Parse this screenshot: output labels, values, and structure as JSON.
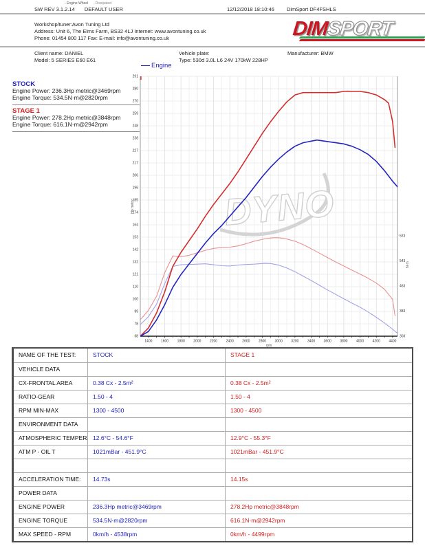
{
  "colors": {
    "stock_blue": "#2222bf",
    "stage1_red": "#d02020",
    "logo_red": "#cc1622",
    "logo_green": "#2e9e50"
  },
  "header": {
    "legend_tiny1": "- Engine Wheel",
    "legend_tiny2": "- Dissipated",
    "sw_rev": "SW REV 3.1.2.14",
    "user": "DEFAULT USER",
    "datetime": "12/12/2018 18:10:46",
    "device": "DimSport DF4FSHLS",
    "workshop_line1": "Workshop/tuner:Avon Tuning Ltd",
    "workshop_line2": "Address: Unit 6, The Elms Farm, BS32 4LJ Internet: www.avontuning.co.uk",
    "workshop_line3": "Phone: 01454 800 117 Fax:  E-mail: info@avontuning.co.uk",
    "logo_dim": "DIM",
    "logo_sport": "SPORT"
  },
  "vehicle": {
    "client_label": "Client name: DANIEL",
    "model_label": "Model: 5 SERIES E60 E61",
    "plate_label": "Vehicle plate:",
    "type_label": "Type: 530d 3.0L L6 24V 170kW 228HP",
    "manufacturer_label": "Manufacturer: BMW"
  },
  "results": {
    "stock": {
      "title": "STOCK",
      "power": "Engine Power: 236.3Hp metric@3469rpm",
      "torque": "Engine Torque: 534.5N·m@2820rpm"
    },
    "stage1": {
      "title": "STAGE 1",
      "power": "Engine Power: 278.2Hp metric@3848rpm",
      "torque": "Engine Torque: 616.1N·m@2942rpm"
    }
  },
  "chart_data": {
    "type": "line",
    "title": "",
    "legend": [
      {
        "label": "Engine",
        "color": "#2222bf"
      }
    ],
    "watermark": "DYNO",
    "xlabel": "rpm",
    "ylabel_left": "Hp metric",
    "ylabel_right": "N·m",
    "axes": {
      "x": {
        "min": 1300,
        "max": 4460
      },
      "y_left": {
        "min": 68,
        "max": 291
      },
      "y_right": {
        "min": 303,
        "max": 1129
      }
    },
    "x_ticks": [
      1400,
      1600,
      1800,
      2000,
      2200,
      2400,
      2600,
      2800,
      3000,
      3200,
      3400,
      3600,
      3800,
      4000,
      4200,
      4400
    ],
    "y_left_ticks": [
      291,
      280,
      270,
      259,
      248,
      238,
      227,
      217,
      206,
      196,
      185,
      174,
      164,
      153,
      142,
      132,
      121,
      110,
      100,
      89,
      78,
      68
    ],
    "y_right_ticks": [
      623,
      543,
      463,
      383,
      303
    ],
    "series": [
      {
        "name": "stage1-torque",
        "unit": "N·m",
        "axis": "right",
        "color": "#ea9090",
        "width": 1.1,
        "points": [
          [
            1300,
            355
          ],
          [
            1400,
            385
          ],
          [
            1500,
            430
          ],
          [
            1600,
            505
          ],
          [
            1700,
            558
          ],
          [
            1800,
            556
          ],
          [
            1900,
            560
          ],
          [
            2000,
            568
          ],
          [
            2100,
            576
          ],
          [
            2200,
            582
          ],
          [
            2300,
            585
          ],
          [
            2400,
            586
          ],
          [
            2500,
            590
          ],
          [
            2600,
            597
          ],
          [
            2700,
            605
          ],
          [
            2800,
            611
          ],
          [
            2900,
            615
          ],
          [
            2942,
            616
          ],
          [
            3000,
            616
          ],
          [
            3100,
            612
          ],
          [
            3200,
            605
          ],
          [
            3300,
            594
          ],
          [
            3400,
            581
          ],
          [
            3500,
            567
          ],
          [
            3600,
            553
          ],
          [
            3700,
            539
          ],
          [
            3800,
            526
          ],
          [
            3900,
            513
          ],
          [
            4000,
            500
          ],
          [
            4100,
            487
          ],
          [
            4200,
            472
          ],
          [
            4300,
            452
          ],
          [
            4400,
            420
          ],
          [
            4430,
            368
          ]
        ]
      },
      {
        "name": "stock-torque",
        "unit": "N·m",
        "axis": "right",
        "color": "#a3a3ea",
        "width": 1.1,
        "points": [
          [
            1300,
            340
          ],
          [
            1400,
            365
          ],
          [
            1500,
            405
          ],
          [
            1600,
            470
          ],
          [
            1700,
            525
          ],
          [
            1800,
            530
          ],
          [
            1900,
            531
          ],
          [
            2000,
            532
          ],
          [
            2100,
            533
          ],
          [
            2200,
            530
          ],
          [
            2300,
            527
          ],
          [
            2400,
            526
          ],
          [
            2500,
            529
          ],
          [
            2600,
            531
          ],
          [
            2700,
            532
          ],
          [
            2800,
            534
          ],
          [
            2820,
            534.5
          ],
          [
            2900,
            534
          ],
          [
            3000,
            529
          ],
          [
            3100,
            520
          ],
          [
            3200,
            508
          ],
          [
            3300,
            494
          ],
          [
            3400,
            480
          ],
          [
            3500,
            465
          ],
          [
            3600,
            450
          ],
          [
            3700,
            436
          ],
          [
            3800,
            422
          ],
          [
            3900,
            408
          ],
          [
            4000,
            395
          ],
          [
            4100,
            380
          ],
          [
            4200,
            363
          ],
          [
            4300,
            345
          ],
          [
            4400,
            325
          ],
          [
            4500,
            304
          ]
        ]
      },
      {
        "name": "stage1-power",
        "unit": "Hp",
        "axis": "left",
        "color": "#d03030",
        "width": 1.6,
        "points": [
          [
            1300,
            68
          ],
          [
            1400,
            75
          ],
          [
            1500,
            88
          ],
          [
            1600,
            106
          ],
          [
            1700,
            128
          ],
          [
            1800,
            140
          ],
          [
            1900,
            150
          ],
          [
            2000,
            160
          ],
          [
            2100,
            171
          ],
          [
            2200,
            181
          ],
          [
            2300,
            190
          ],
          [
            2400,
            199
          ],
          [
            2500,
            209
          ],
          [
            2600,
            220
          ],
          [
            2700,
            231
          ],
          [
            2800,
            242
          ],
          [
            2900,
            252
          ],
          [
            3000,
            261
          ],
          [
            3100,
            269
          ],
          [
            3200,
            275
          ],
          [
            3300,
            277
          ],
          [
            3400,
            277
          ],
          [
            3500,
            277
          ],
          [
            3600,
            277
          ],
          [
            3700,
            277
          ],
          [
            3800,
            278
          ],
          [
            3848,
            278.2
          ],
          [
            3900,
            278
          ],
          [
            4000,
            278
          ],
          [
            4100,
            277
          ],
          [
            4200,
            275
          ],
          [
            4300,
            271
          ],
          [
            4350,
            268
          ],
          [
            4400,
            252
          ],
          [
            4430,
            230
          ]
        ]
      },
      {
        "name": "stock-power",
        "unit": "Hp",
        "axis": "left",
        "color": "#2525c0",
        "width": 1.6,
        "points": [
          [
            1300,
            68
          ],
          [
            1400,
            72
          ],
          [
            1500,
            82
          ],
          [
            1600,
            95
          ],
          [
            1700,
            110
          ],
          [
            1800,
            121
          ],
          [
            1900,
            130
          ],
          [
            2000,
            139
          ],
          [
            2100,
            148
          ],
          [
            2200,
            156
          ],
          [
            2300,
            163
          ],
          [
            2400,
            171
          ],
          [
            2500,
            179
          ],
          [
            2600,
            187
          ],
          [
            2700,
            196
          ],
          [
            2800,
            205
          ],
          [
            2900,
            213
          ],
          [
            3000,
            220
          ],
          [
            3100,
            226
          ],
          [
            3200,
            231
          ],
          [
            3300,
            234
          ],
          [
            3469,
            236.3
          ],
          [
            3500,
            236
          ],
          [
            3600,
            235
          ],
          [
            3700,
            234
          ],
          [
            3800,
            233
          ],
          [
            3900,
            231
          ],
          [
            4000,
            228
          ],
          [
            4100,
            224
          ],
          [
            4200,
            218
          ],
          [
            4300,
            210
          ],
          [
            4400,
            201
          ],
          [
            4500,
            193
          ]
        ]
      }
    ]
  },
  "table": {
    "rows": [
      {
        "type": "header",
        "label": "NAME OF THE TEST:",
        "stock": "STOCK",
        "stage1": "STAGE 1"
      },
      {
        "type": "section",
        "label": "VEHICLE DATA",
        "stock": "",
        "stage1": ""
      },
      {
        "type": "data",
        "label": "CX-FRONTAL AREA",
        "stock": "0.38 Cx - 2.5m²",
        "stage1": "0.38 Cx - 2.5m²"
      },
      {
        "type": "data",
        "label": "RATIO-GEAR",
        "stock": "1.50 - 4",
        "stage1": "1.50 - 4"
      },
      {
        "type": "data",
        "label": "RPM MIN-MAX",
        "stock": "1300 - 4500",
        "stage1": "1300 - 4500"
      },
      {
        "type": "section",
        "label": "ENVIRONMENT DATA",
        "stock": "",
        "stage1": ""
      },
      {
        "type": "data",
        "label": "ATMOSPHERIC TEMPERATURE:",
        "stock": "12.6°C - 54.6°F",
        "stage1": "12.9°C - 55.3°F"
      },
      {
        "type": "data",
        "label": "ATM P - OIL T",
        "stock": "1021mBar - 451.9°C",
        "stage1": "1021mBar - 451.9°C"
      },
      {
        "type": "empty",
        "label": "",
        "stock": "",
        "stage1": ""
      },
      {
        "type": "data",
        "label": "ACCELERATION TIME:",
        "stock": "14.73s",
        "stage1": "14.15s"
      },
      {
        "type": "section",
        "label": "POWER DATA",
        "stock": "",
        "stage1": ""
      },
      {
        "type": "data",
        "label": "ENGINE POWER",
        "stock": "236.3Hp metric@3469rpm",
        "stage1": "278.2Hp metric@3848rpm"
      },
      {
        "type": "data",
        "label": "ENGINE TORQUE",
        "stock": "534.5N·m@2820rpm",
        "stage1": "616.1N·m@2942rpm"
      },
      {
        "type": "data",
        "label": "MAX SPEED - RPM",
        "stock": "0km/h - 4538rpm",
        "stage1": "0km/h - 4499rpm"
      }
    ]
  }
}
